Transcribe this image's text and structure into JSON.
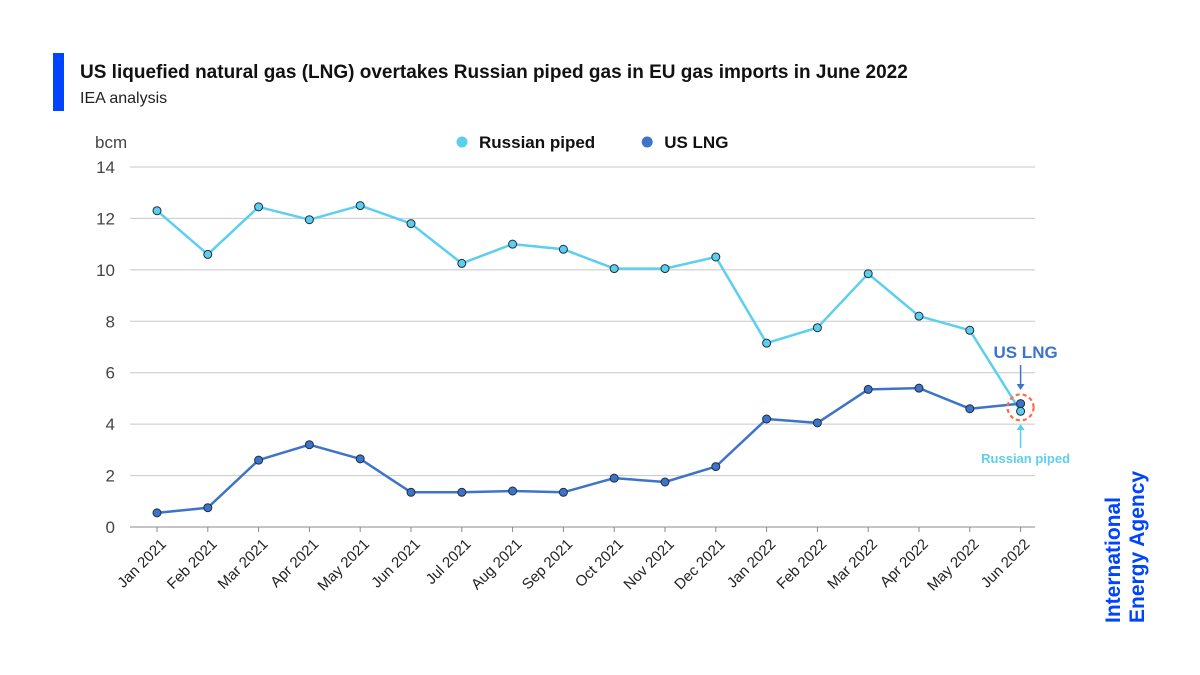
{
  "header": {
    "title": "US liquefied natural gas (LNG) overtakes Russian piped gas in EU gas imports in June 2022",
    "subtitle": "IEA analysis"
  },
  "brand": {
    "line1": "International",
    "line2": "Energy Agency",
    "color": "#0044ff"
  },
  "chart_data": {
    "type": "line",
    "ylabel": "bcm",
    "ylim": [
      0,
      14
    ],
    "yticks": [
      0,
      2,
      4,
      6,
      8,
      10,
      12,
      14
    ],
    "grid": true,
    "legend_position": "top-center",
    "categories": [
      "Jan 2021",
      "Feb 2021",
      "Mar 2021",
      "Apr 2021",
      "May 2021",
      "Jun 2021",
      "Jul 2021",
      "Aug 2021",
      "Sep 2021",
      "Oct 2021",
      "Nov 2021",
      "Dec 2021",
      "Jan 2022",
      "Feb 2022",
      "Mar 2022",
      "Apr 2022",
      "May 2022",
      "Jun 2022"
    ],
    "series": [
      {
        "name": "Russian piped",
        "color": "#5ccfee",
        "values": [
          12.3,
          10.6,
          12.45,
          11.95,
          12.5,
          11.8,
          10.25,
          11.0,
          10.8,
          10.05,
          10.05,
          10.5,
          7.15,
          7.75,
          9.85,
          8.2,
          7.65,
          4.5
        ]
      },
      {
        "name": "US LNG",
        "color": "#3d74c9",
        "values": [
          0.55,
          0.75,
          2.6,
          3.2,
          2.65,
          1.35,
          1.35,
          1.4,
          1.35,
          1.9,
          1.75,
          2.35,
          4.2,
          4.05,
          5.35,
          5.4,
          4.6,
          4.8
        ]
      }
    ],
    "annotations": [
      {
        "text": "US LNG",
        "series": "US LNG",
        "color": "#3d74c9"
      },
      {
        "text": "Russian piped",
        "series": "Russian piped",
        "color": "#5ccfee"
      }
    ]
  }
}
